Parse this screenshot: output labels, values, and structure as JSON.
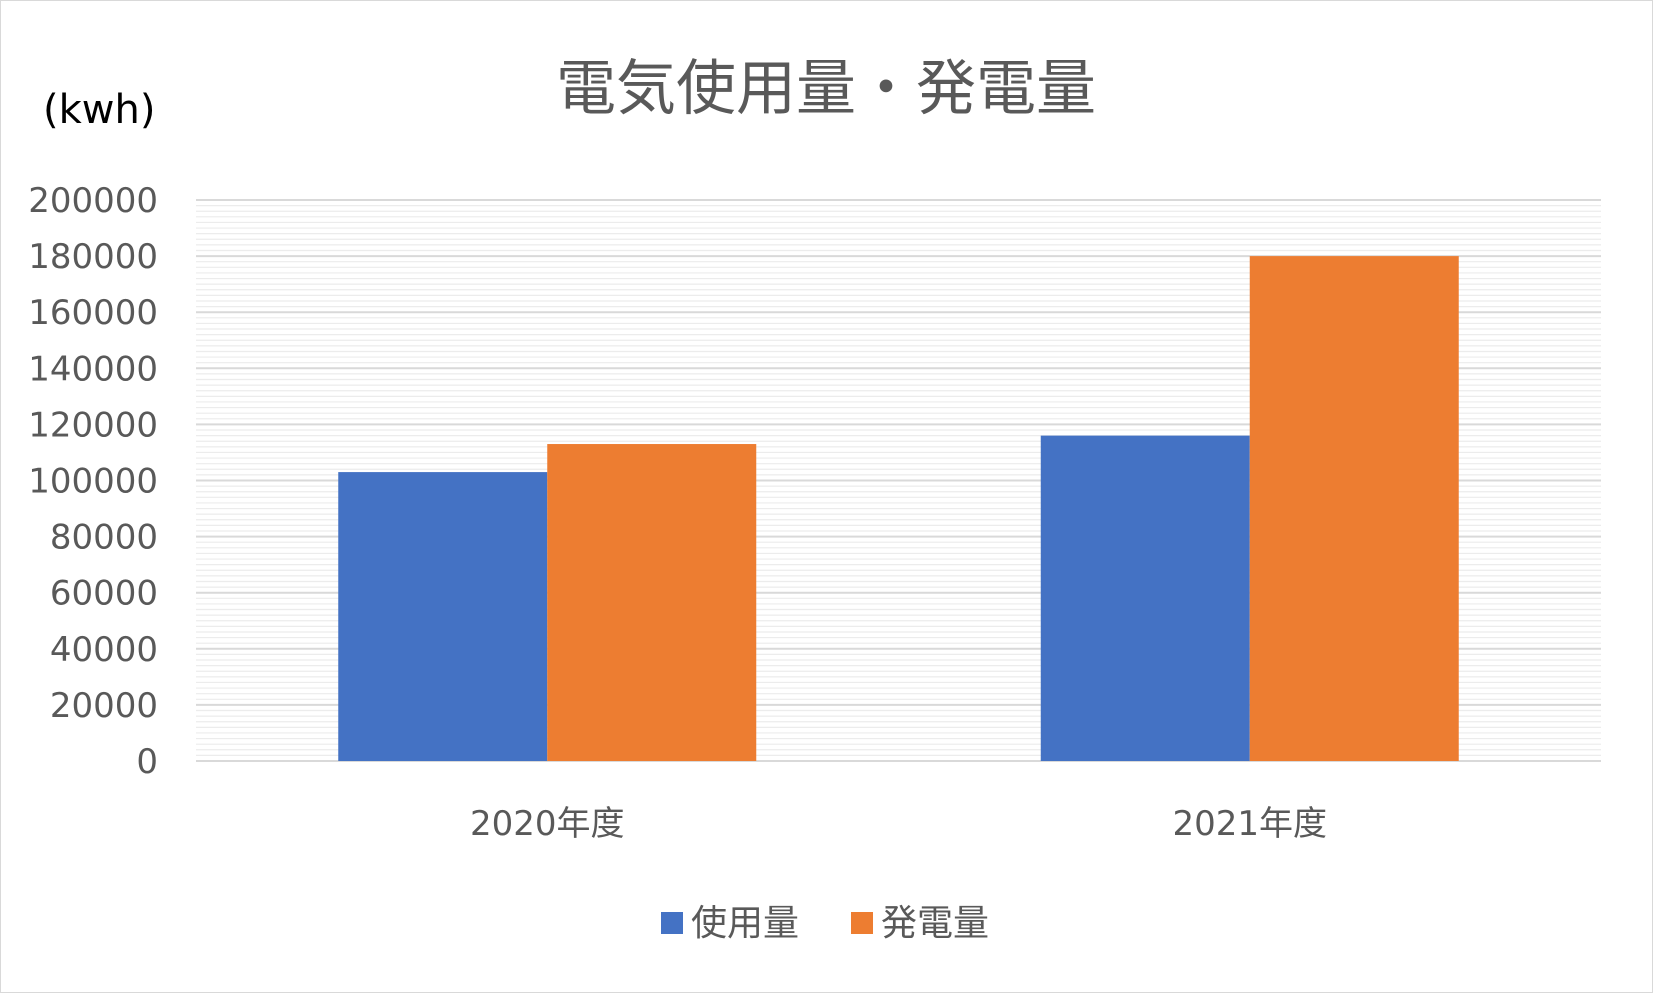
{
  "chart_data": {
    "type": "bar",
    "title": "電気使用量・発電量",
    "unit_label": "(kwh)",
    "xlabel": "",
    "ylabel": "",
    "categories": [
      "2020年度",
      "2021年度"
    ],
    "series": [
      {
        "name": "使用量",
        "color": "#4472C4",
        "values": [
          103000,
          116000
        ]
      },
      {
        "name": "発電量",
        "color": "#ED7D31",
        "values": [
          113000,
          180000
        ]
      }
    ],
    "ylim": [
      0,
      200000
    ],
    "yticks": [
      "0",
      "20000",
      "40000",
      "60000",
      "80000",
      "100000",
      "120000",
      "140000",
      "160000",
      "180000",
      "200000"
    ],
    "grid": true,
    "legend_position": "bottom"
  }
}
